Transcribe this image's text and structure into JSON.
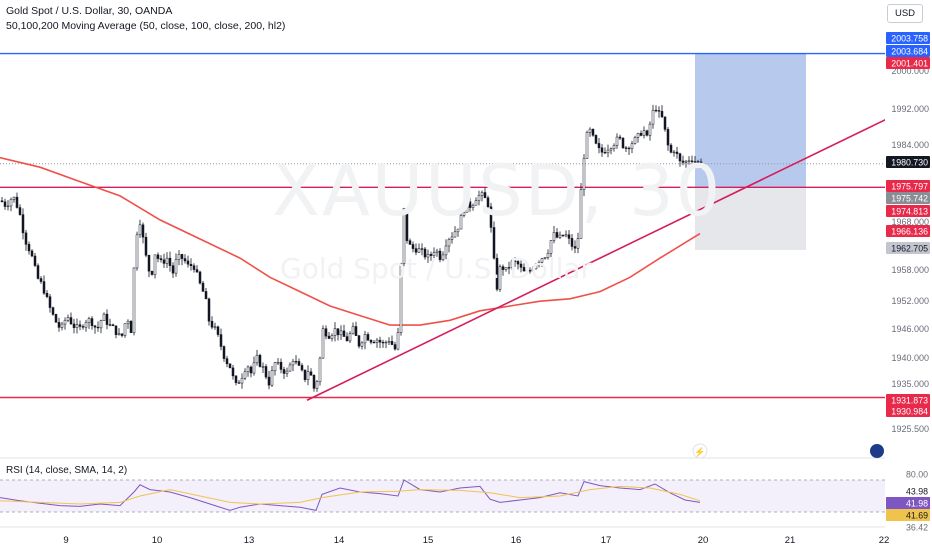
{
  "header": {
    "symbol_line": "Gold Spot / U.S. Dollar, 30, OANDA",
    "indicator_line": "50,100,200 Moving Average (50, close, 100, close, 200, hl2)",
    "currency": "USD"
  },
  "watermark": {
    "symbol": "XAUUSD, 30",
    "description": "Gold Spot / U.S. Dollar"
  },
  "rsi_panel": {
    "title": "RSI (14, close, SMA, 14, 2)"
  },
  "colors": {
    "candle": "#131722",
    "ma": "#f0504a",
    "trendline": "#d61c5a",
    "hline_red": "#e8294a",
    "hline_blue": "#2962ff",
    "target_zone": "#b3c6ec",
    "stop_zone": "#e6e7ea",
    "rsi_line": "#7e57c2",
    "rsi_ma": "#f0c44c"
  },
  "chart_data": {
    "type": "candlestick",
    "x_tick_labels": [
      "9",
      "10",
      "13",
      "14",
      "15",
      "16",
      "17",
      "20",
      "21",
      "22"
    ],
    "y_tick_labels": [
      "1925.500",
      "1935.000",
      "1940.000",
      "1946.000",
      "1952.000",
      "1958.000",
      "1968.000",
      "1984.000",
      "1992.000",
      "2000.000"
    ],
    "price_labels": [
      {
        "value": "2003.758",
        "color": "#2962ff"
      },
      {
        "value": "2003.684",
        "color": "#2962ff"
      },
      {
        "value": "2001.401",
        "color": "#e8294a"
      },
      {
        "value": "1980.730",
        "color": "#131722"
      },
      {
        "value": "1975.797",
        "color": "#e8294a"
      },
      {
        "value": "1975.742",
        "color": "#8a8d96"
      },
      {
        "value": "1974.813",
        "color": "#e8294a"
      },
      {
        "value": "1966.136",
        "color": "#e8294a"
      },
      {
        "value": "1962.705",
        "color": "#c3c6cf"
      },
      {
        "value": "1931.873",
        "color": "#e8294a"
      },
      {
        "value": "1930.984",
        "color": "#e8294a"
      }
    ],
    "close_path": [
      [
        0,
        1973
      ],
      [
        5,
        1972
      ],
      [
        12,
        1974
      ],
      [
        18,
        1971
      ],
      [
        24,
        1965
      ],
      [
        30,
        1962
      ],
      [
        36,
        1957
      ],
      [
        42,
        1955
      ],
      [
        48,
        1951
      ],
      [
        54,
        1948
      ],
      [
        60,
        1946
      ],
      [
        66,
        1949
      ],
      [
        72,
        1947
      ],
      [
        78,
        1946
      ],
      [
        84,
        1948
      ],
      [
        90,
        1948
      ],
      [
        96,
        1946
      ],
      [
        102,
        1949
      ],
      [
        108,
        1947
      ],
      [
        114,
        1946
      ],
      [
        120,
        1944
      ],
      [
        126,
        1949
      ],
      [
        130,
        1946
      ],
      [
        134,
        1963
      ],
      [
        138,
        1970
      ],
      [
        142,
        1965
      ],
      [
        146,
        1960
      ],
      [
        150,
        1957
      ],
      [
        154,
        1962
      ],
      [
        160,
        1960
      ],
      [
        166,
        1961
      ],
      [
        172,
        1958
      ],
      [
        176,
        1961
      ],
      [
        182,
        1961
      ],
      [
        188,
        1959
      ],
      [
        192,
        1960
      ],
      [
        198,
        1956
      ],
      [
        204,
        1953
      ],
      [
        208,
        1948
      ],
      [
        214,
        1946
      ],
      [
        218,
        1944
      ],
      [
        224,
        1940
      ],
      [
        230,
        1938
      ],
      [
        234,
        1934
      ],
      [
        240,
        1936
      ],
      [
        246,
        1939
      ],
      [
        250,
        1937
      ],
      [
        256,
        1940
      ],
      [
        262,
        1938
      ],
      [
        268,
        1935
      ],
      [
        274,
        1939
      ],
      [
        280,
        1938
      ],
      [
        286,
        1937
      ],
      [
        292,
        1940
      ],
      [
        298,
        1938
      ],
      [
        304,
        1936
      ],
      [
        308,
        1938
      ],
      [
        314,
        1933
      ],
      [
        318,
        1938
      ],
      [
        322,
        1946
      ],
      [
        328,
        1945
      ],
      [
        334,
        1946
      ],
      [
        340,
        1945
      ],
      [
        346,
        1944
      ],
      [
        352,
        1946
      ],
      [
        358,
        1943
      ],
      [
        364,
        1945
      ],
      [
        370,
        1944
      ],
      [
        376,
        1944
      ],
      [
        382,
        1943
      ],
      [
        388,
        1944
      ],
      [
        394,
        1942
      ],
      [
        398,
        1946
      ],
      [
        402,
        1973
      ],
      [
        406,
        1965
      ],
      [
        410,
        1963
      ],
      [
        416,
        1963
      ],
      [
        422,
        1962
      ],
      [
        428,
        1961
      ],
      [
        434,
        1963
      ],
      [
        440,
        1961
      ],
      [
        446,
        1965
      ],
      [
        452,
        1966
      ],
      [
        458,
        1968
      ],
      [
        464,
        1972
      ],
      [
        470,
        1972
      ],
      [
        476,
        1974
      ],
      [
        482,
        1974
      ],
      [
        488,
        1972
      ],
      [
        492,
        1962
      ],
      [
        496,
        1955
      ],
      [
        500,
        1960
      ],
      [
        504,
        1958
      ],
      [
        510,
        1960
      ],
      [
        516,
        1960
      ],
      [
        522,
        1958
      ],
      [
        528,
        1958
      ],
      [
        534,
        1960
      ],
      [
        540,
        1961
      ],
      [
        546,
        1962
      ],
      [
        552,
        1966
      ],
      [
        558,
        1965
      ],
      [
        564,
        1966
      ],
      [
        570,
        1964
      ],
      [
        576,
        1962
      ],
      [
        580,
        1975
      ],
      [
        584,
        1985
      ],
      [
        588,
        1988
      ],
      [
        592,
        1986
      ],
      [
        596,
        1984
      ],
      [
        600,
        1983
      ],
      [
        606,
        1984
      ],
      [
        612,
        1985
      ],
      [
        618,
        1986
      ],
      [
        624,
        1984
      ],
      [
        630,
        1985
      ],
      [
        636,
        1986
      ],
      [
        642,
        1988
      ],
      [
        646,
        1986
      ],
      [
        650,
        1990
      ],
      [
        654,
        1993
      ],
      [
        658,
        1991
      ],
      [
        662,
        1990
      ],
      [
        666,
        1985
      ],
      [
        670,
        1983
      ],
      [
        674,
        1984
      ],
      [
        678,
        1981
      ],
      [
        684,
        1981
      ],
      [
        690,
        1982
      ],
      [
        696,
        1981
      ],
      [
        700,
        1980.73
      ]
    ],
    "moving_average_200": [
      [
        0,
        1982
      ],
      [
        40,
        1980
      ],
      [
        80,
        1977
      ],
      [
        120,
        1974
      ],
      [
        160,
        1969
      ],
      [
        200,
        1965
      ],
      [
        240,
        1961
      ],
      [
        270,
        1957
      ],
      [
        300,
        1954
      ],
      [
        330,
        1951
      ],
      [
        360,
        1949
      ],
      [
        390,
        1947
      ],
      [
        420,
        1947
      ],
      [
        450,
        1948
      ],
      [
        480,
        1950
      ],
      [
        510,
        1951
      ],
      [
        540,
        1952
      ],
      [
        570,
        1952.5
      ],
      [
        600,
        1954
      ],
      [
        630,
        1957
      ],
      [
        660,
        1961
      ],
      [
        700,
        1966.136
      ]
    ],
    "trendline": [
      [
        307,
        1931.3
      ],
      [
        888,
        1990.2
      ]
    ],
    "horizontal_levels": [
      {
        "price": 2003.758,
        "color": "#2962ff"
      },
      {
        "price": 1975.797,
        "color": "#d61c5a"
      },
      {
        "price": 1931.873,
        "color": "#e8294a"
      }
    ],
    "position_tool": {
      "x_start": 695,
      "x_end": 806,
      "target_top": 2003.758,
      "entry": 1975.797,
      "stop": 1962.705
    },
    "rsi": {
      "axis_labels": [
        "80.00",
        "43.98",
        "41.98",
        "41.69",
        "36.42"
      ],
      "upper_band": 70,
      "lower_band": 30,
      "ylim": [
        20,
        80
      ],
      "rsi_line": [
        [
          0,
          48
        ],
        [
          20,
          44
        ],
        [
          40,
          41
        ],
        [
          60,
          38
        ],
        [
          80,
          37
        ],
        [
          100,
          40
        ],
        [
          120,
          38
        ],
        [
          134,
          55
        ],
        [
          140,
          64
        ],
        [
          150,
          58
        ],
        [
          170,
          55
        ],
        [
          190,
          48
        ],
        [
          210,
          40
        ],
        [
          230,
          32
        ],
        [
          240,
          36
        ],
        [
          260,
          40
        ],
        [
          280,
          38
        ],
        [
          300,
          36
        ],
        [
          316,
          32
        ],
        [
          322,
          52
        ],
        [
          340,
          60
        ],
        [
          360,
          55
        ],
        [
          380,
          53
        ],
        [
          398,
          50
        ],
        [
          404,
          70
        ],
        [
          420,
          58
        ],
        [
          440,
          55
        ],
        [
          460,
          60
        ],
        [
          480,
          62
        ],
        [
          490,
          46
        ],
        [
          500,
          42
        ],
        [
          520,
          45
        ],
        [
          540,
          48
        ],
        [
          560,
          54
        ],
        [
          578,
          50
        ],
        [
          584,
          68
        ],
        [
          600,
          63
        ],
        [
          620,
          60
        ],
        [
          640,
          58
        ],
        [
          655,
          65
        ],
        [
          670,
          54
        ],
        [
          685,
          45
        ],
        [
          700,
          42
        ]
      ],
      "rsi_ma": [
        [
          0,
          44
        ],
        [
          40,
          42
        ],
        [
          80,
          40
        ],
        [
          120,
          42
        ],
        [
          140,
          50
        ],
        [
          170,
          58
        ],
        [
          200,
          50
        ],
        [
          230,
          42
        ],
        [
          260,
          40
        ],
        [
          300,
          42
        ],
        [
          322,
          48
        ],
        [
          360,
          55
        ],
        [
          398,
          56
        ],
        [
          420,
          58
        ],
        [
          460,
          57
        ],
        [
          490,
          54
        ],
        [
          520,
          48
        ],
        [
          560,
          50
        ],
        [
          590,
          58
        ],
        [
          620,
          62
        ],
        [
          650,
          60
        ],
        [
          680,
          52
        ],
        [
          700,
          44
        ]
      ]
    }
  }
}
